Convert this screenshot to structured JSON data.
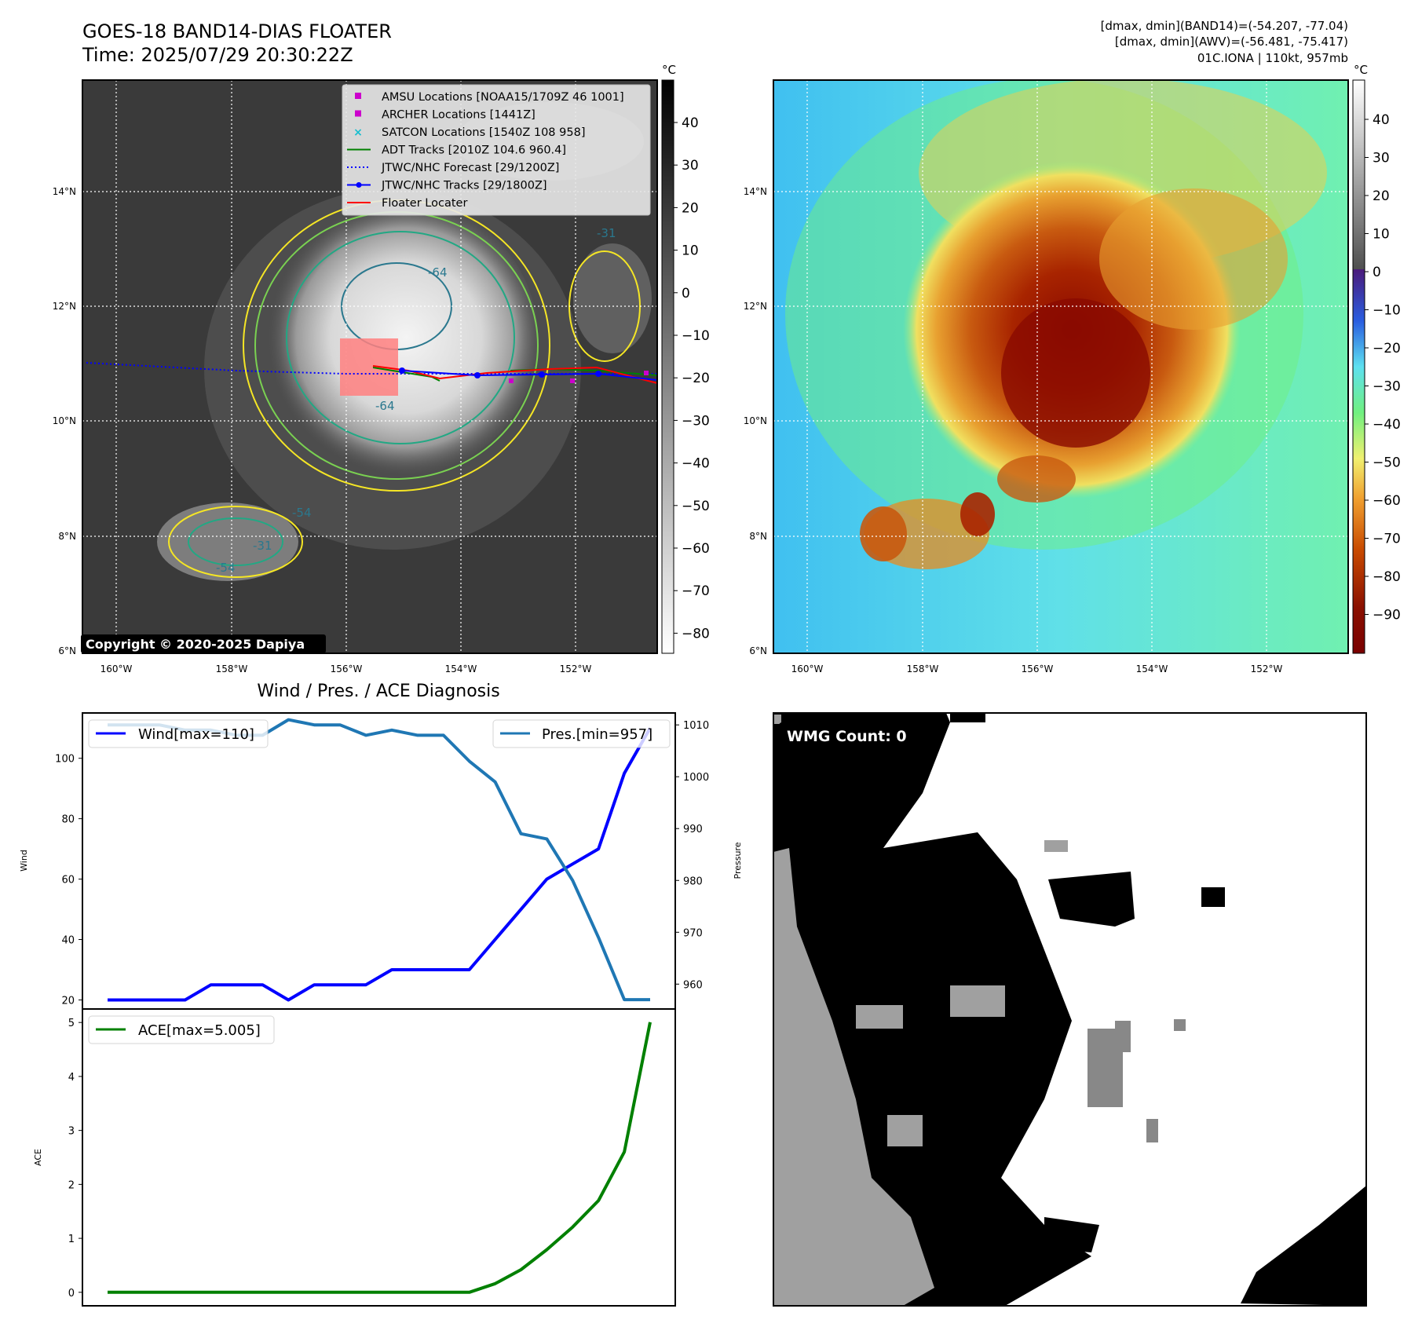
{
  "header": {
    "title_line1": "GOES-18 BAND14-DIAS FLOATER",
    "title_line2": "Time: 2025/07/29 20:30:22Z",
    "info_line1": "[dmax, dmin](BAND14)=(-54.207, -77.04)",
    "info_line2": "[dmax, dmin](AWV)=(-56.481, -75.417)",
    "info_line3": "01C.IONA | 110kt, 957mb"
  },
  "map": {
    "lon_labels": [
      "160°W",
      "158°W",
      "156°W",
      "154°W",
      "152°W"
    ],
    "lat_labels": [
      "14°N",
      "12°N",
      "10°N",
      "8°N",
      "6°N"
    ],
    "copyright": "Copyright © 2020-2025 Dapiya",
    "contour_labels": [
      "-64",
      "-64",
      "-54",
      "-54",
      "-31",
      "-31"
    ],
    "legend": [
      {
        "label": "AMSU Locations [NOAA15/1709Z 46 1001]",
        "kind": "square",
        "color": "#cc00cc"
      },
      {
        "label": "ARCHER Locations [1441Z]",
        "kind": "square",
        "color": "#cc00cc"
      },
      {
        "label": "SATCON Locations [1540Z 108 958]",
        "kind": "x",
        "color": "#17becf"
      },
      {
        "label": "ADT Tracks [2010Z 104.6 960.4]",
        "kind": "line",
        "color": "#008000"
      },
      {
        "label": "JTWC/NHC Forecast [29/1200Z]",
        "kind": "dotted",
        "color": "#0000ff"
      },
      {
        "label": "JTWC/NHC Tracks [29/1800Z]",
        "kind": "linedot",
        "color": "#0000ff"
      },
      {
        "label": "Floater Locater",
        "kind": "line",
        "color": "#ff0000"
      }
    ]
  },
  "colorbars": {
    "unit": "°C",
    "gray_ticks": [
      "40",
      "30",
      "20",
      "10",
      "0",
      "−10",
      "−20",
      "−30",
      "−40",
      "−50",
      "−60",
      "−70",
      "−80"
    ],
    "color_ticks": [
      "40",
      "30",
      "20",
      "10",
      "0",
      "−10",
      "−20",
      "−30",
      "−40",
      "−50",
      "−60",
      "−70",
      "−80",
      "−90"
    ]
  },
  "wmg": {
    "count_label": "WMG Count: 0"
  },
  "colors": {
    "wind": "#0000ff",
    "pressure": "#1f77b4",
    "ace": "#008000"
  },
  "chart_data": [
    {
      "type": "line",
      "title": "Wind / Pres. / ACE Diagnosis",
      "ylabel": "Wind",
      "ylabel2": "Pressure",
      "ylim": [
        17,
        115
      ],
      "ylim2": [
        955.2,
        1012.3
      ],
      "yticks": [
        20,
        40,
        60,
        80,
        100
      ],
      "yticks2": [
        960,
        970,
        980,
        990,
        1000,
        1010
      ],
      "x": [
        0,
        1,
        2,
        3,
        4,
        5,
        6,
        7,
        8,
        9,
        10,
        11,
        12,
        13,
        14,
        15,
        16,
        17,
        18,
        19,
        20,
        21
      ],
      "series": [
        {
          "name": "Wind[max=110]",
          "axis": "left",
          "values": [
            20,
            20,
            20,
            20,
            25,
            25,
            25,
            20,
            25,
            25,
            25,
            30,
            30,
            30,
            30,
            40,
            50,
            60,
            65,
            70,
            95,
            110
          ]
        },
        {
          "name": "Pres.[min=957]",
          "axis": "right",
          "values": [
            1010,
            1010,
            1010,
            1009,
            1009,
            1008,
            1008,
            1011,
            1010,
            1010,
            1008,
            1009,
            1008,
            1008,
            1003,
            999,
            989,
            988,
            980,
            969,
            957,
            957
          ]
        }
      ]
    },
    {
      "type": "line",
      "ylabel": "ACE",
      "ylim": [
        -0.25,
        5.25
      ],
      "yticks": [
        0,
        1,
        2,
        3,
        4,
        5
      ],
      "x": [
        0,
        1,
        2,
        3,
        4,
        5,
        6,
        7,
        8,
        9,
        10,
        11,
        12,
        13,
        14,
        15,
        16,
        17,
        18,
        19,
        20,
        21
      ],
      "series": [
        {
          "name": "ACE[max=5.005]",
          "axis": "left",
          "values": [
            0,
            0,
            0,
            0,
            0,
            0,
            0,
            0,
            0,
            0,
            0,
            0,
            0,
            0,
            0,
            0.16,
            0.42,
            0.79,
            1.21,
            1.7,
            2.6,
            5.005
          ]
        }
      ]
    }
  ]
}
